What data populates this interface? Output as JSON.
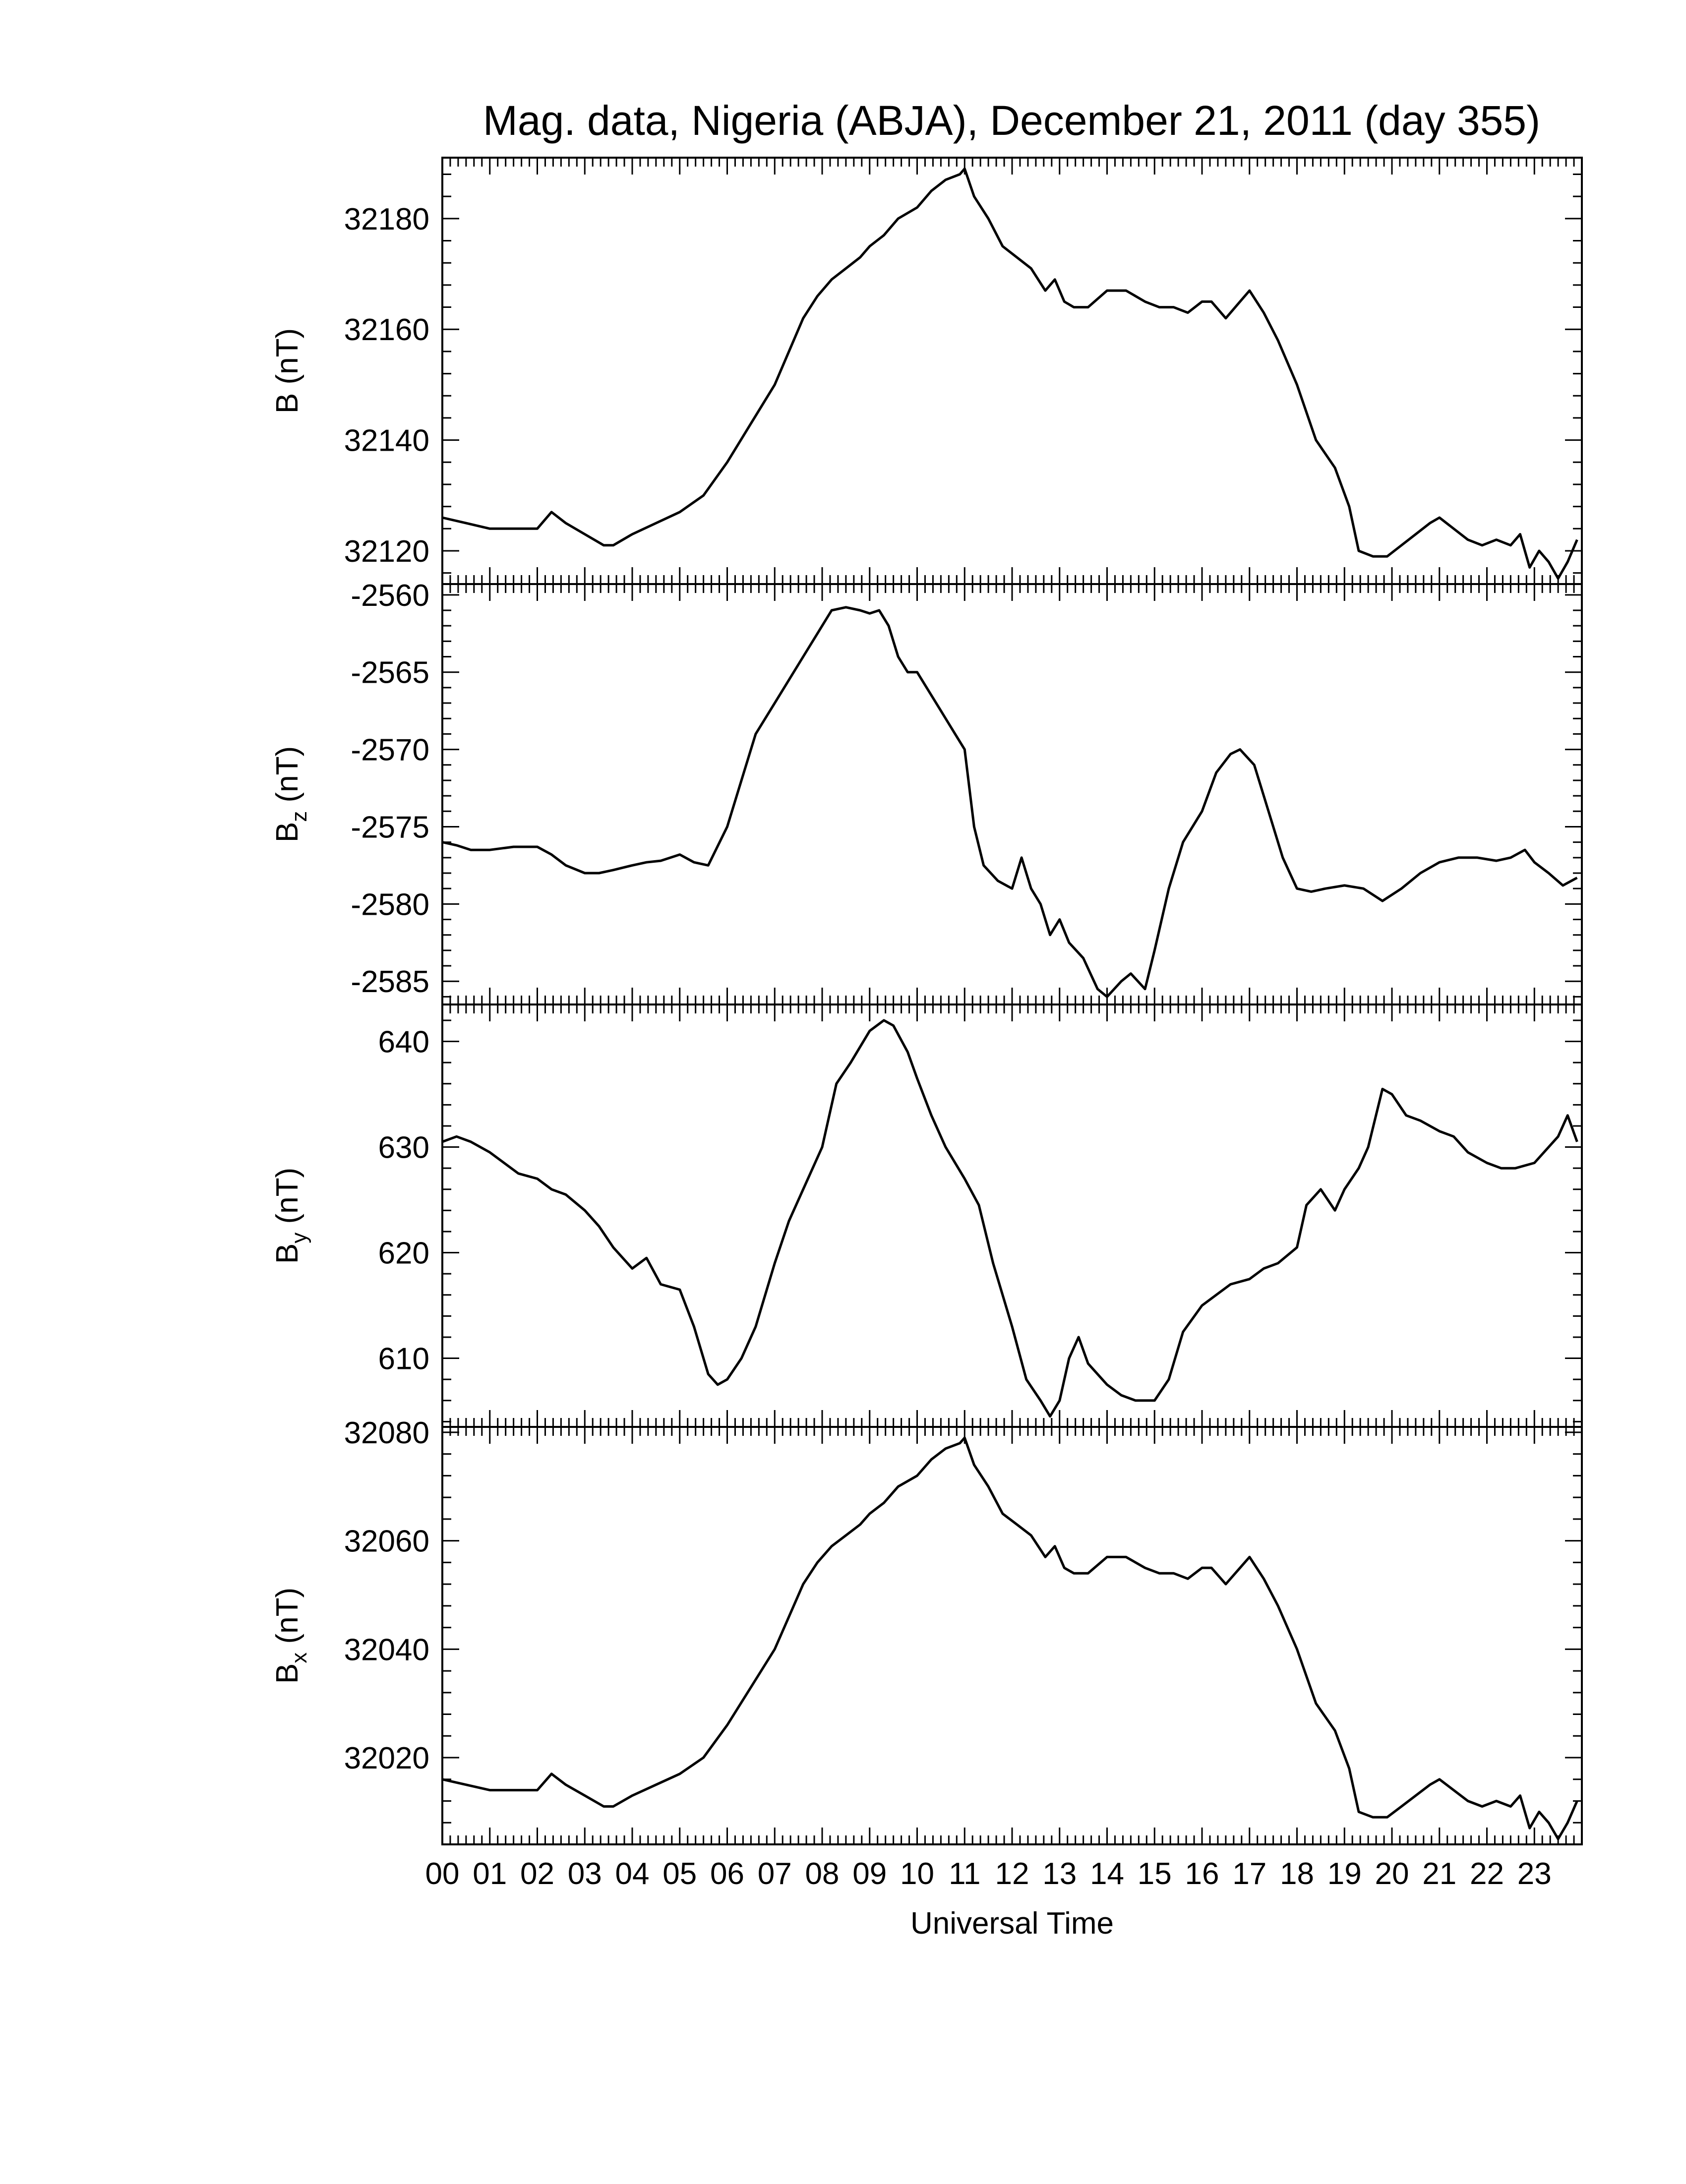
{
  "title": "Mag. data, Nigeria (ABJA), December 21, 2011 (day 355)",
  "xlabel": "Universal Time",
  "x_ticks": [
    "00",
    "01",
    "02",
    "03",
    "04",
    "05",
    "06",
    "07",
    "08",
    "09",
    "10",
    "11",
    "12",
    "13",
    "14",
    "15",
    "16",
    "17",
    "18",
    "19",
    "20",
    "21",
    "22",
    "23"
  ],
  "colors": {
    "line": "#000000",
    "axis": "#000000",
    "background": "#ffffff"
  },
  "chart_data": [
    {
      "type": "line",
      "ylabel": "B (nT)",
      "ylabel_main": "B",
      "ylabel_sub": "",
      "ylabel_unit": "(nT)",
      "xlim": [
        0,
        24
      ],
      "ylim": [
        32114,
        32191
      ],
      "yticks": [
        32120,
        32140,
        32160,
        32180
      ],
      "series": [
        {
          "x": [
            0.0,
            0.5,
            1.0,
            1.5,
            2.0,
            2.3,
            2.6,
            3.0,
            3.4,
            3.6,
            4.0,
            4.5,
            5.0,
            5.5,
            6.0,
            6.5,
            7.0,
            7.3,
            7.6,
            7.9,
            8.2,
            8.5,
            8.8,
            9.0,
            9.3,
            9.6,
            10.0,
            10.3,
            10.6,
            10.9,
            11.0,
            11.2,
            11.5,
            11.8,
            12.1,
            12.4,
            12.7,
            12.9,
            13.1,
            13.3,
            13.6,
            14.0,
            14.4,
            14.8,
            15.1,
            15.4,
            15.7,
            16.0,
            16.2,
            16.5,
            16.8,
            17.0,
            17.3,
            17.6,
            18.0,
            18.4,
            18.8,
            19.1,
            19.3,
            19.6,
            19.9,
            20.2,
            20.5,
            20.8,
            21.0,
            21.3,
            21.6,
            21.9,
            22.2,
            22.5,
            22.7,
            22.9,
            23.1,
            23.3,
            23.5,
            23.7,
            23.9
          ],
          "y": [
            32126,
            32125,
            32124,
            32124,
            32124,
            32127,
            32125,
            32123,
            32121,
            32121,
            32123,
            32125,
            32127,
            32130,
            32136,
            32143,
            32150,
            32156,
            32162,
            32166,
            32169,
            32171,
            32173,
            32175,
            32177,
            32180,
            32182,
            32185,
            32187,
            32188,
            32189,
            32184,
            32180,
            32175,
            32173,
            32171,
            32167,
            32169,
            32165,
            32164,
            32164,
            32167,
            32167,
            32165,
            32164,
            32164,
            32163,
            32165,
            32165,
            32162,
            32165,
            32167,
            32163,
            32158,
            32150,
            32140,
            32135,
            32128,
            32120,
            32119,
            32119,
            32121,
            32123,
            32125,
            32126,
            32124,
            32122,
            32121,
            32122,
            32121,
            32123,
            32117,
            32120,
            32118,
            32115,
            32118,
            32122
          ]
        }
      ]
    },
    {
      "type": "line",
      "ylabel": "Bz (nT)",
      "ylabel_main": "B",
      "ylabel_sub": "z",
      "ylabel_unit": "(nT)",
      "xlim": [
        0,
        24
      ],
      "ylim": [
        -2586.5,
        -2559.3
      ],
      "yticks": [
        -2560,
        -2565,
        -2570,
        -2575,
        -2580,
        -2585
      ],
      "series": [
        {
          "x": [
            0.0,
            0.3,
            0.6,
            1.0,
            1.5,
            2.0,
            2.3,
            2.6,
            3.0,
            3.3,
            3.6,
            4.0,
            4.3,
            4.6,
            5.0,
            5.3,
            5.6,
            6.0,
            6.3,
            6.6,
            7.0,
            7.3,
            7.6,
            7.9,
            8.2,
            8.5,
            8.8,
            9.0,
            9.2,
            9.4,
            9.6,
            9.8,
            10.0,
            10.2,
            10.5,
            10.8,
            11.0,
            11.2,
            11.4,
            11.7,
            12.0,
            12.2,
            12.4,
            12.6,
            12.8,
            13.0,
            13.2,
            13.5,
            13.8,
            14.0,
            14.3,
            14.5,
            14.8,
            15.0,
            15.3,
            15.6,
            16.0,
            16.3,
            16.6,
            16.8,
            17.1,
            17.4,
            17.7,
            18.0,
            18.3,
            18.6,
            19.0,
            19.4,
            19.8,
            20.2,
            20.6,
            21.0,
            21.4,
            21.8,
            22.2,
            22.5,
            22.8,
            23.0,
            23.3,
            23.6,
            23.9
          ],
          "y": [
            -2576.0,
            -2576.2,
            -2576.5,
            -2576.5,
            -2576.3,
            -2576.3,
            -2576.8,
            -2577.5,
            -2578.0,
            -2578.0,
            -2577.8,
            -2577.5,
            -2577.3,
            -2577.2,
            -2576.8,
            -2577.3,
            -2577.5,
            -2575.0,
            -2572.0,
            -2569.0,
            -2567.0,
            -2565.5,
            -2564.0,
            -2562.5,
            -2561.0,
            -2560.8,
            -2561.0,
            -2561.2,
            -2561.0,
            -2562.0,
            -2564.0,
            -2565.0,
            -2565.0,
            -2566.0,
            -2567.5,
            -2569.0,
            -2570.0,
            -2575.0,
            -2577.5,
            -2578.5,
            -2579.0,
            -2577.0,
            -2579.0,
            -2580.0,
            -2582.0,
            -2581.0,
            -2582.5,
            -2583.5,
            -2585.5,
            -2586.0,
            -2585.0,
            -2584.5,
            -2585.5,
            -2583.0,
            -2579.0,
            -2576.0,
            -2574.0,
            -2571.5,
            -2570.3,
            -2570.0,
            -2571.0,
            -2574.0,
            -2577.0,
            -2579.0,
            -2579.2,
            -2579.0,
            -2578.8,
            -2579.0,
            -2579.8,
            -2579.0,
            -2578.0,
            -2577.3,
            -2577.0,
            -2577.0,
            -2577.2,
            -2577.0,
            -2576.5,
            -2577.3,
            -2578.0,
            -2578.8,
            -2578.3
          ]
        }
      ]
    },
    {
      "type": "line",
      "ylabel": "By (nT)",
      "ylabel_main": "B",
      "ylabel_sub": "y",
      "ylabel_unit": "(nT)",
      "xlim": [
        0,
        24
      ],
      "ylim": [
        603.5,
        643.5
      ],
      "yticks": [
        610,
        620,
        630,
        640
      ],
      "series": [
        {
          "x": [
            0.0,
            0.3,
            0.6,
            1.0,
            1.3,
            1.6,
            2.0,
            2.3,
            2.6,
            3.0,
            3.3,
            3.6,
            4.0,
            4.3,
            4.6,
            5.0,
            5.3,
            5.6,
            5.8,
            6.0,
            6.3,
            6.6,
            7.0,
            7.3,
            7.6,
            8.0,
            8.3,
            8.6,
            9.0,
            9.3,
            9.5,
            9.8,
            10.0,
            10.3,
            10.6,
            11.0,
            11.3,
            11.6,
            12.0,
            12.3,
            12.6,
            12.8,
            13.0,
            13.2,
            13.4,
            13.6,
            14.0,
            14.3,
            14.6,
            15.0,
            15.3,
            15.6,
            16.0,
            16.3,
            16.6,
            17.0,
            17.3,
            17.6,
            18.0,
            18.2,
            18.5,
            18.8,
            19.0,
            19.3,
            19.5,
            19.8,
            20.0,
            20.3,
            20.6,
            21.0,
            21.3,
            21.6,
            22.0,
            22.3,
            22.6,
            23.0,
            23.3,
            23.5,
            23.7,
            23.9
          ],
          "y": [
            630.5,
            631.0,
            630.5,
            629.5,
            628.5,
            627.5,
            627.0,
            626.0,
            625.5,
            624.0,
            622.5,
            620.5,
            618.5,
            619.5,
            617.0,
            616.5,
            613.0,
            608.5,
            607.5,
            608.0,
            610.0,
            613.0,
            619.0,
            623.0,
            626.0,
            630.0,
            636.0,
            638.0,
            641.0,
            642.0,
            641.5,
            639.0,
            636.5,
            633.0,
            630.0,
            627.0,
            624.5,
            619.0,
            613.0,
            608.0,
            606.0,
            604.5,
            606.0,
            610.0,
            612.0,
            609.5,
            607.5,
            606.5,
            606.0,
            606.0,
            608.0,
            612.5,
            615.0,
            616.0,
            617.0,
            617.5,
            618.5,
            619.0,
            620.5,
            624.5,
            626.0,
            624.0,
            626.0,
            628.0,
            630.0,
            635.5,
            635.0,
            633.0,
            632.5,
            631.5,
            631.0,
            629.5,
            628.5,
            628.0,
            628.0,
            628.5,
            630.0,
            631.0,
            633.0,
            630.5
          ]
        }
      ]
    },
    {
      "type": "line",
      "ylabel": "Bx (nT)",
      "ylabel_main": "B",
      "ylabel_sub": "x",
      "ylabel_unit": "(nT)",
      "xlim": [
        0,
        24
      ],
      "ylim": [
        32004,
        32081
      ],
      "yticks": [
        32020,
        32040,
        32060,
        32080
      ],
      "series": [
        {
          "x": [
            0.0,
            0.5,
            1.0,
            1.5,
            2.0,
            2.3,
            2.6,
            3.0,
            3.4,
            3.6,
            4.0,
            4.5,
            5.0,
            5.5,
            6.0,
            6.5,
            7.0,
            7.3,
            7.6,
            7.9,
            8.2,
            8.5,
            8.8,
            9.0,
            9.3,
            9.6,
            10.0,
            10.3,
            10.6,
            10.9,
            11.0,
            11.2,
            11.5,
            11.8,
            12.1,
            12.4,
            12.7,
            12.9,
            13.1,
            13.3,
            13.6,
            14.0,
            14.4,
            14.8,
            15.1,
            15.4,
            15.7,
            16.0,
            16.2,
            16.5,
            16.8,
            17.0,
            17.3,
            17.6,
            18.0,
            18.4,
            18.8,
            19.1,
            19.3,
            19.6,
            19.9,
            20.2,
            20.5,
            20.8,
            21.0,
            21.3,
            21.6,
            21.9,
            22.2,
            22.5,
            22.7,
            22.9,
            23.1,
            23.3,
            23.5,
            23.7,
            23.9
          ],
          "y": [
            32016,
            32015,
            32014,
            32014,
            32014,
            32017,
            32015,
            32013,
            32011,
            32011,
            32013,
            32015,
            32017,
            32020,
            32026,
            32033,
            32040,
            32046,
            32052,
            32056,
            32059,
            32061,
            32063,
            32065,
            32067,
            32070,
            32072,
            32075,
            32077,
            32078,
            32079,
            32074,
            32070,
            32065,
            32063,
            32061,
            32057,
            32059,
            32055,
            32054,
            32054,
            32057,
            32057,
            32055,
            32054,
            32054,
            32053,
            32055,
            32055,
            32052,
            32055,
            32057,
            32053,
            32048,
            32040,
            32030,
            32025,
            32018,
            32010,
            32009,
            32009,
            32011,
            32013,
            32015,
            32016,
            32014,
            32012,
            32011,
            32012,
            32011,
            32013,
            32007,
            32010,
            32008,
            32005,
            32008,
            32012
          ]
        }
      ]
    }
  ]
}
